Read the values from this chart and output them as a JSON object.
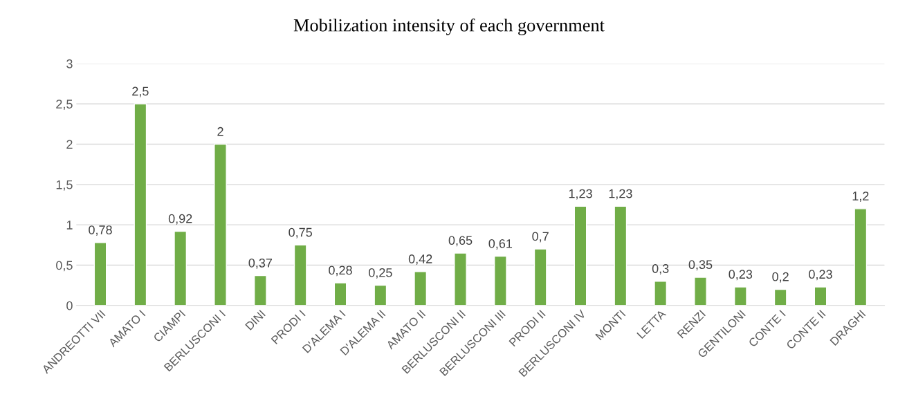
{
  "chart_data": {
    "type": "bar",
    "title": "Mobilization intensity of each government",
    "categories": [
      "ANDREOTTI VII",
      "AMATO I",
      "CIAMPI",
      "BERLUSCONI I",
      "DINI",
      "PRODI I",
      "D'ALEMA I",
      "D'ALEMA II",
      "AMATO II",
      "BERLUSCONI II",
      "BERLUSCONI III",
      "PRODI II",
      "BERLUSCONI IV",
      "MONTI",
      "LETTA",
      "RENZI",
      "GENTILONI",
      "CONTE I",
      "CONTE II",
      "DRAGHI"
    ],
    "values": [
      0.78,
      2.5,
      0.92,
      2,
      0.37,
      0.75,
      0.28,
      0.25,
      0.42,
      0.65,
      0.61,
      0.7,
      1.23,
      1.23,
      0.3,
      0.35,
      0.23,
      0.2,
      0.23,
      1.2
    ],
    "value_labels": [
      "0,78",
      "2,5",
      "0,92",
      "2",
      "0,37",
      "0,75",
      "0,28",
      "0,25",
      "0,42",
      "0,65",
      "0,61",
      "0,7",
      "1,23",
      "1,23",
      "0,3",
      "0,35",
      "0,23",
      "0,2",
      "0,23",
      "1,2"
    ],
    "color": "#70ad47",
    "ylim": [
      0,
      3
    ],
    "yticks": [
      0,
      {
        "value": 0.5,
        "label": "0,5"
      },
      1,
      {
        "value": 1.5,
        "label": "1,5"
      },
      2,
      {
        "value": 2.5,
        "label": "2,5"
      },
      3
    ],
    "grid": "y",
    "legend": false
  }
}
